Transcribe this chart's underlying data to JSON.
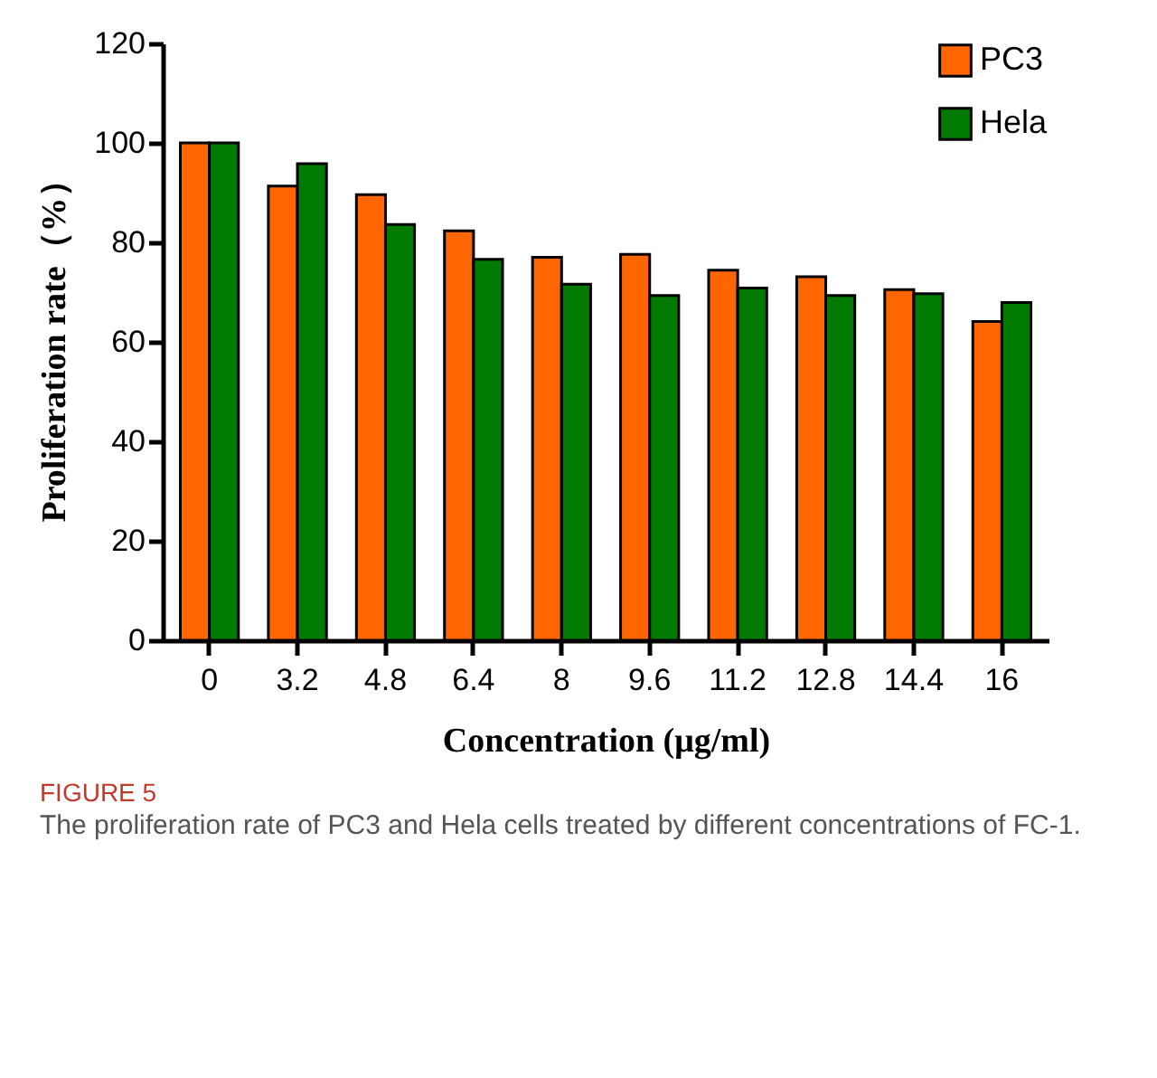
{
  "chart_data": {
    "type": "bar",
    "xlabel": "Concentration (μg/ml)",
    "ylabel": "Proliferation rate（%）",
    "categories": [
      "0",
      "3.2",
      "4.8",
      "6.4",
      "8",
      "9.6",
      "11.2",
      "12.8",
      "14.4",
      "16"
    ],
    "series": [
      {
        "name": "PC3",
        "color": "#ff6600",
        "values": [
          100,
          91.3,
          89.6,
          82.3,
          77,
          77.6,
          74.4,
          73.1,
          70.5,
          64.1
        ]
      },
      {
        "name": "Hela",
        "color": "#007a00",
        "values": [
          100,
          95.8,
          83.6,
          76.6,
          71.6,
          69.3,
          70.8,
          69.3,
          69.7,
          67.9
        ]
      }
    ],
    "ylim": [
      0,
      120
    ],
    "yticks": [
      0,
      20,
      40,
      60,
      80,
      100,
      120
    ],
    "grid": false,
    "legend": "top right",
    "annotations": [
      "FIGURE 5",
      "The proliferation rate of PC3 and Hela cells treated by different concentrations of FC-1."
    ]
  }
}
